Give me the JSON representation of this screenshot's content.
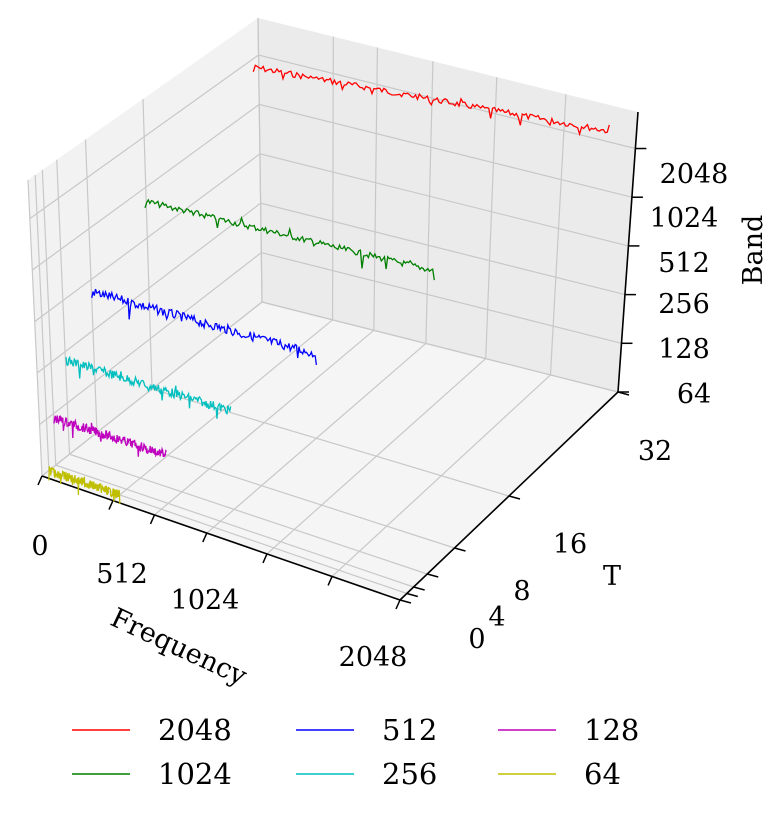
{
  "chart_data": {
    "type": "line",
    "subtype": "3d-line",
    "title": "",
    "xlabel": "Frequency",
    "ylabel": "T",
    "zlabel": "Band",
    "x_ticks": [
      "0",
      "512",
      "1024",
      "2048"
    ],
    "y_ticks": [
      "0",
      "4",
      "8",
      "16",
      "32"
    ],
    "z_ticks": [
      "64",
      "128",
      "256",
      "512",
      "1024",
      "2048"
    ],
    "legend_position": "bottom",
    "grid": true,
    "series": [
      {
        "name": "2048",
        "color": "#ff0000",
        "band": 2048,
        "t": 32,
        "freq_range": [
          0,
          2048
        ]
      },
      {
        "name": "1024",
        "color": "#008000",
        "band": 1024,
        "t": 16,
        "freq_range": [
          0,
          1024
        ]
      },
      {
        "name": "512",
        "color": "#0000ff",
        "band": 512,
        "t": 8,
        "freq_range": [
          0,
          512
        ]
      },
      {
        "name": "256",
        "color": "#00bfbf",
        "band": 256,
        "t": 4,
        "freq_range": [
          0,
          256
        ]
      },
      {
        "name": "128",
        "color": "#bf00bf",
        "band": 128,
        "t": 2,
        "freq_range": [
          0,
          128
        ]
      },
      {
        "name": "64",
        "color": "#bfbf00",
        "band": 64,
        "t": 1,
        "freq_range": [
          0,
          64
        ]
      }
    ]
  }
}
